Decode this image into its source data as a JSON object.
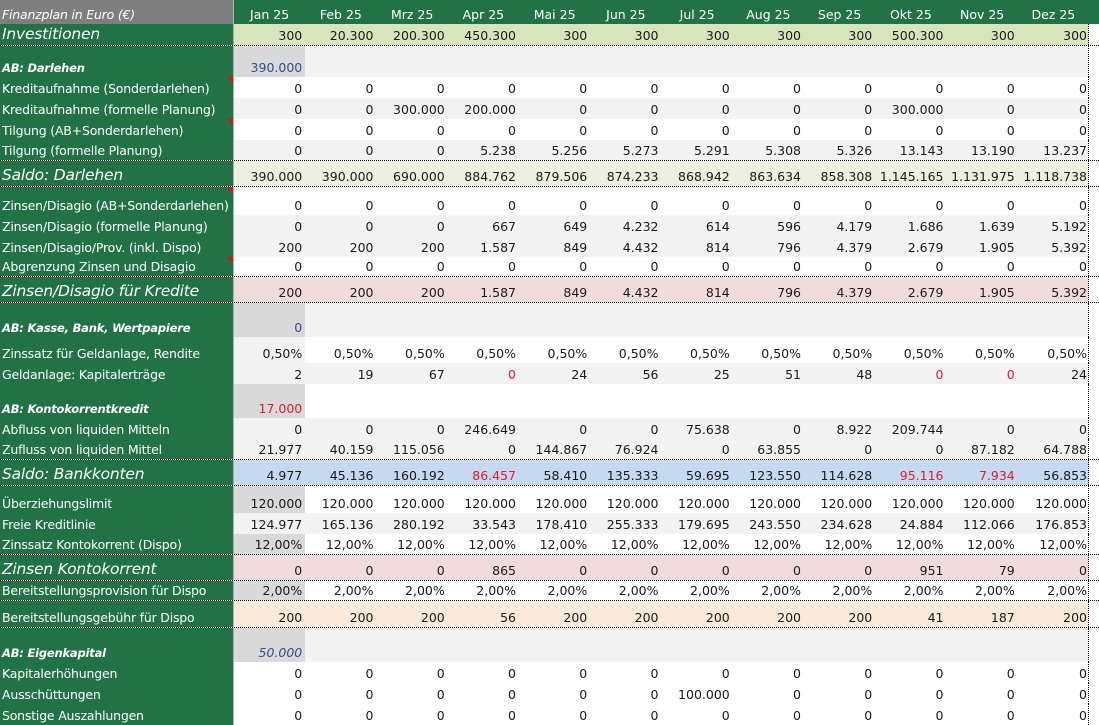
{
  "sheet": {
    "title": "Finanzplan in Euro (€)",
    "months": [
      "Jan 25",
      "Feb 25",
      "Mrz 25",
      "Apr 25",
      "Mai 25",
      "Jun 25",
      "Jul 25",
      "Aug 25",
      "Sep 25",
      "Okt 25",
      "Nov 25",
      "Dez 25"
    ],
    "colors": {
      "label_bg": "#217346",
      "header_label_bg": "#7f7f7f",
      "negative": "#e8192c",
      "opening_blue": "#2f4f8f"
    },
    "rows": [
      {
        "label": "Investitionen",
        "values": [
          "300",
          "20.300",
          "200.300",
          "450.300",
          "300",
          "300",
          "300",
          "300",
          "300",
          "500.300",
          "300",
          "300"
        ]
      },
      {
        "label": "AB: Darlehen",
        "values": [
          "390.000",
          "",
          "",
          "",
          "",
          "",
          "",
          "",
          "",
          "",
          "",
          ""
        ]
      },
      {
        "label": "Kreditaufnahme (Sonderdarlehen)",
        "values": [
          "0",
          "0",
          "0",
          "0",
          "0",
          "0",
          "0",
          "0",
          "0",
          "0",
          "0",
          "0"
        ]
      },
      {
        "label": "Kreditaufnahme (formelle Planung)",
        "values": [
          "0",
          "0",
          "300.000",
          "200.000",
          "0",
          "0",
          "0",
          "0",
          "0",
          "300.000",
          "0",
          "0"
        ]
      },
      {
        "label": "Tilgung (AB+Sonderdarlehen)",
        "values": [
          "0",
          "0",
          "0",
          "0",
          "0",
          "0",
          "0",
          "0",
          "0",
          "0",
          "0",
          "0"
        ]
      },
      {
        "label": "Tilgung (formelle Planung)",
        "values": [
          "0",
          "0",
          "0",
          "5.238",
          "5.256",
          "5.273",
          "5.291",
          "5.308",
          "5.326",
          "13.143",
          "13.190",
          "13.237"
        ]
      },
      {
        "label": "Saldo: Darlehen",
        "values": [
          "390.000",
          "390.000",
          "690.000",
          "884.762",
          "879.506",
          "874.233",
          "868.942",
          "863.634",
          "858.308",
          "1.145.165",
          "1.131.975",
          "1.118.738"
        ]
      },
      {
        "label": "Zinsen/Disagio (AB+Sonderdarlehen)",
        "values": [
          "0",
          "0",
          "0",
          "0",
          "0",
          "0",
          "0",
          "0",
          "0",
          "0",
          "0",
          "0"
        ]
      },
      {
        "label": "Zinsen/Disagio (formelle Planung)",
        "values": [
          "0",
          "0",
          "0",
          "667",
          "649",
          "4.232",
          "614",
          "596",
          "4.179",
          "1.686",
          "1.639",
          "5.192"
        ]
      },
      {
        "label": "Zinsen/Disagio/Prov. (inkl. Dispo)",
        "values": [
          "200",
          "200",
          "200",
          "1.587",
          "849",
          "4.432",
          "814",
          "796",
          "4.379",
          "2.679",
          "1.905",
          "5.392"
        ]
      },
      {
        "label": "Abgrenzung Zinsen und Disagio",
        "values": [
          "0",
          "0",
          "0",
          "0",
          "0",
          "0",
          "0",
          "0",
          "0",
          "0",
          "0",
          "0"
        ]
      },
      {
        "label": "Zinsen/Disagio für Kredite",
        "values": [
          "200",
          "200",
          "200",
          "1.587",
          "849",
          "4.432",
          "814",
          "796",
          "4.379",
          "2.679",
          "1.905",
          "5.392"
        ]
      },
      {
        "label": "AB: Kasse, Bank, Wertpapiere",
        "values": [
          "0",
          "",
          "",
          "",
          "",
          "",
          "",
          "",
          "",
          "",
          "",
          ""
        ]
      },
      {
        "label": "Zinssatz für Geldanlage, Rendite",
        "values": [
          "0,50%",
          "0,50%",
          "0,50%",
          "0,50%",
          "0,50%",
          "0,50%",
          "0,50%",
          "0,50%",
          "0,50%",
          "0,50%",
          "0,50%",
          "0,50%"
        ]
      },
      {
        "label": "Geldanlage: Kapitalerträge",
        "values": [
          "2",
          "19",
          "67",
          "0",
          "24",
          "56",
          "25",
          "51",
          "48",
          "0",
          "0",
          "24"
        ]
      },
      {
        "label": "AB: Kontokorrentkredit",
        "values": [
          "17.000",
          "",
          "",
          "",
          "",
          "",
          "",
          "",
          "",
          "",
          "",
          ""
        ]
      },
      {
        "label": "Abfluss von liquiden Mitteln",
        "values": [
          "0",
          "0",
          "0",
          "246.649",
          "0",
          "0",
          "75.638",
          "0",
          "8.922",
          "209.744",
          "0",
          "0"
        ]
      },
      {
        "label": "Zufluss von liquiden Mittel",
        "values": [
          "21.977",
          "40.159",
          "115.056",
          "0",
          "144.867",
          "76.924",
          "0",
          "63.855",
          "0",
          "0",
          "87.182",
          "64.788"
        ]
      },
      {
        "label": "Saldo: Bankkonten",
        "values": [
          "4.977",
          "45.136",
          "160.192",
          "86.457",
          "58.410",
          "135.333",
          "59.695",
          "123.550",
          "114.628",
          "95.116",
          "7.934",
          "56.853"
        ]
      },
      {
        "label": "Überziehungslimit",
        "values": [
          "120.000",
          "120.000",
          "120.000",
          "120.000",
          "120.000",
          "120.000",
          "120.000",
          "120.000",
          "120.000",
          "120.000",
          "120.000",
          "120.000"
        ]
      },
      {
        "label": "Freie Kreditlinie",
        "values": [
          "124.977",
          "165.136",
          "280.192",
          "33.543",
          "178.410",
          "255.333",
          "179.695",
          "243.550",
          "234.628",
          "24.884",
          "112.066",
          "176.853"
        ]
      },
      {
        "label": "Zinssatz Kontokorrent (Dispo)",
        "values": [
          "12,00%",
          "12,00%",
          "12,00%",
          "12,00%",
          "12,00%",
          "12,00%",
          "12,00%",
          "12,00%",
          "12,00%",
          "12,00%",
          "12,00%",
          "12,00%"
        ]
      },
      {
        "label": "Zinsen Kontokorrent",
        "values": [
          "0",
          "0",
          "0",
          "865",
          "0",
          "0",
          "0",
          "0",
          "0",
          "951",
          "79",
          "0"
        ]
      },
      {
        "label": "Bereitstellungsprovision für Dispo",
        "values": [
          "2,00%",
          "2,00%",
          "2,00%",
          "2,00%",
          "2,00%",
          "2,00%",
          "2,00%",
          "2,00%",
          "2,00%",
          "2,00%",
          "2,00%",
          "2,00%"
        ]
      },
      {
        "label": "Bereitstellungsgebühr für Dispo",
        "values": [
          "200",
          "200",
          "200",
          "56",
          "200",
          "200",
          "200",
          "200",
          "200",
          "41",
          "187",
          "200"
        ]
      },
      {
        "label": "AB: Eigenkapital",
        "values": [
          "50.000",
          "",
          "",
          "",
          "",
          "",
          "",
          "",
          "",
          "",
          "",
          ""
        ]
      },
      {
        "label": "Kapitalerhöhungen",
        "values": [
          "0",
          "0",
          "0",
          "0",
          "0",
          "0",
          "0",
          "0",
          "0",
          "0",
          "0",
          "0"
        ]
      },
      {
        "label": "Ausschüttungen",
        "values": [
          "0",
          "0",
          "0",
          "0",
          "0",
          "0",
          "100.000",
          "0",
          "0",
          "0",
          "0",
          "0"
        ]
      },
      {
        "label": "Sonstige Auszahlungen",
        "values": [
          "0",
          "0",
          "0",
          "0",
          "0",
          "0",
          "0",
          "0",
          "0",
          "0",
          "0",
          "0"
        ]
      }
    ]
  }
}
